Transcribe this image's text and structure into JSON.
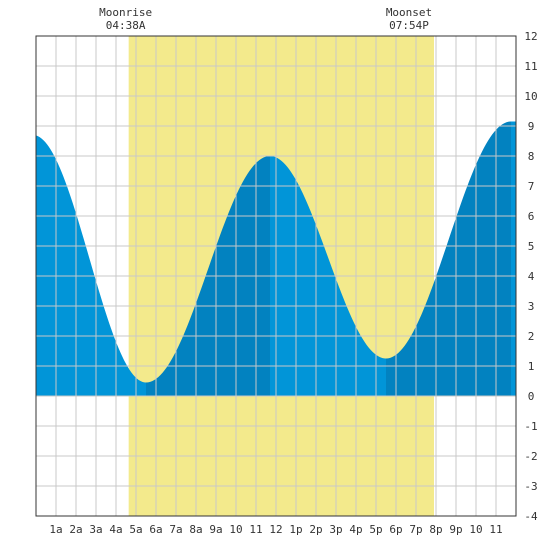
{
  "chart_data": {
    "type": "area",
    "title": "",
    "xlabel": "",
    "ylabel": "",
    "x_unit": "hour of day",
    "xlim": [
      0,
      24
    ],
    "ylim": [
      -4,
      12
    ],
    "x_tick_values": [
      1,
      2,
      3,
      4,
      5,
      6,
      7,
      8,
      9,
      10,
      11,
      12,
      13,
      14,
      15,
      16,
      17,
      18,
      19,
      20,
      21,
      22,
      23
    ],
    "x_tick_labels": [
      "1a",
      "2a",
      "3a",
      "4a",
      "5a",
      "6a",
      "7a",
      "8a",
      "9a",
      "10",
      "11",
      "12",
      "1p",
      "2p",
      "3p",
      "4p",
      "5p",
      "6p",
      "7p",
      "8p",
      "9p",
      "10",
      "11"
    ],
    "y_ticks": [
      -4,
      -3,
      -2,
      -1,
      0,
      1,
      2,
      3,
      4,
      5,
      6,
      7,
      8,
      9,
      10,
      11,
      12
    ],
    "grid": true,
    "tide_extremes": [
      {
        "x": -0.15,
        "y": 8.7,
        "kind": "high"
      },
      {
        "x": 5.5,
        "y": 0.45,
        "kind": "low"
      },
      {
        "x": 11.7,
        "y": 8.0,
        "kind": "high"
      },
      {
        "x": 17.5,
        "y": 1.25,
        "kind": "low"
      },
      {
        "x": 23.75,
        "y": 9.15,
        "kind": "high"
      }
    ],
    "moon_band": {
      "start": 4.633,
      "end": 19.9
    },
    "moonrise": {
      "label": "Moonrise",
      "time": "04:38A",
      "x": 4.633
    },
    "moonset": {
      "label": "Moonset",
      "time": "07:54P",
      "x": 19.9
    },
    "colors": {
      "rising": "#0282c0",
      "falling": "#0195d8",
      "moon_band": "#f3ea8c",
      "grid": "#c8c8c8",
      "background": "#ffffff"
    }
  }
}
